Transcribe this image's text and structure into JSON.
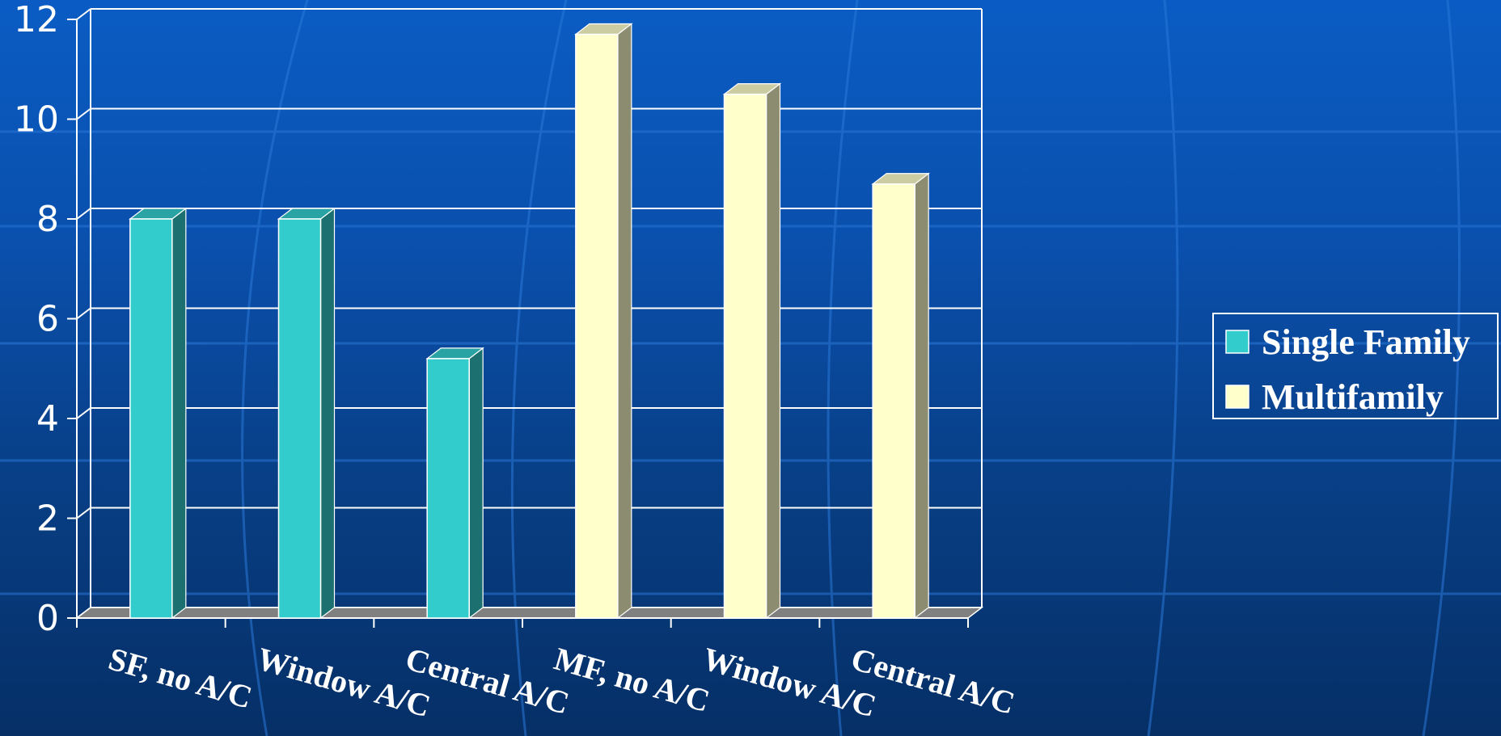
{
  "chart_data": {
    "type": "bar",
    "categories": [
      "SF, no A/C",
      "Window A/C",
      "Central A/C",
      "MF, no A/C",
      "Window A/C",
      "Central A/C"
    ],
    "series": [
      {
        "name": "Single Family",
        "values": [
          8.0,
          8.0,
          5.2,
          null,
          null,
          null
        ],
        "color": "#33cccc"
      },
      {
        "name": "Multifamily",
        "values": [
          null,
          null,
          null,
          11.7,
          10.5,
          8.7
        ],
        "color": "#ffffcc"
      }
    ],
    "ylim": [
      0,
      12
    ],
    "yticks": [
      "0",
      "2",
      "4",
      "6",
      "8",
      "10",
      "12"
    ],
    "grid": true,
    "legend_position": "right",
    "three_d": true
  },
  "colors": {
    "background_top": "#0a5cc4",
    "background_bottom": "#062f66",
    "single_family": "#33cccc",
    "multifamily": "#ffffcc",
    "gridline": "#ffffff"
  }
}
